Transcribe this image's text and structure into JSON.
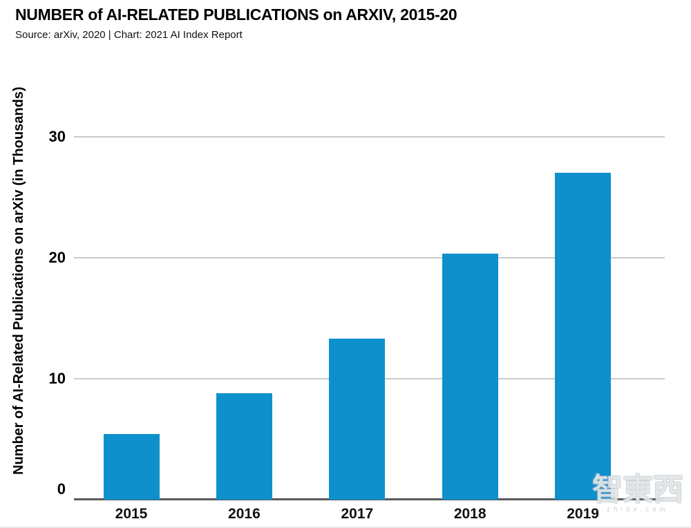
{
  "header": {
    "title": "NUMBER of AI-RELATED PUBLICATIONS on ARXIV, 2015-20",
    "subtitle": "Source: arXiv, 2020 | Chart: 2021 AI Index Report"
  },
  "chart_data": {
    "type": "bar",
    "title": "NUMBER of AI-RELATED PUBLICATIONS on ARXIV, 2015-20",
    "subtitle": "Source: arXiv, 2020 | Chart: 2021 AI Index Report",
    "categories": [
      "2015",
      "2016",
      "2017",
      "2018",
      "2019"
    ],
    "values": [
      5.4,
      8.8,
      13.3,
      20.3,
      27.0
    ],
    "xlabel": "",
    "ylabel": "Number of AI-Related Publications on arXiv (in Thousands)",
    "ylim": [
      0,
      35
    ],
    "yticks": [
      0,
      10,
      20,
      30
    ],
    "grid": true,
    "legend_position": "none",
    "bar_color": "#0E90CC"
  },
  "colors": {
    "bar": "#0E90CC",
    "gridline": "#C9C9C9",
    "axis_baseline": "#58595B",
    "text": "#000000"
  },
  "watermark": {
    "characters": "智東西",
    "domain": "zhidx.com"
  }
}
